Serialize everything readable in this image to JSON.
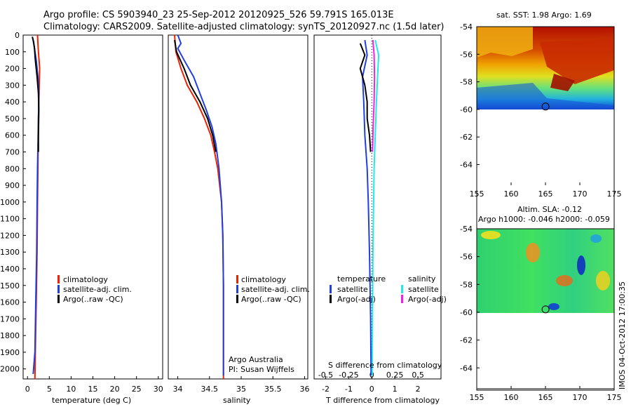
{
  "header": {
    "line1": "Argo profile: CS 5903940_23 25-Sep-2012 20120925_526 59.791S 165.013E",
    "line2": "Climatology: CARS2009. Satellite-adjusted climatology: synTS_20120927.nc (1.5d later)"
  },
  "colors": {
    "climatology": "#ee2200",
    "satellite": "#1f3fe0",
    "argo": "#000000",
    "sal_satellite": "#22e8ee",
    "sal_argo": "#ee22ee"
  },
  "chart_data": [
    {
      "id": "temperature",
      "type": "line",
      "xlabel": "temperature (deg C)",
      "ylabel": "",
      "xlim": [
        -1,
        31
      ],
      "ylim": [
        2060,
        0
      ],
      "y_reversed": true,
      "xticks": [
        "0",
        "5",
        "10",
        "15",
        "20",
        "25",
        "30"
      ],
      "xtick_values": [
        0,
        5,
        10,
        15,
        20,
        25,
        30
      ],
      "yticks": [
        "0",
        "100",
        "200",
        "300",
        "400",
        "500",
        "600",
        "700",
        "800",
        "900",
        "1000",
        "1100",
        "1200",
        "1300",
        "1400",
        "1500",
        "1600",
        "1700",
        "1800",
        "1900",
        "2000"
      ],
      "ytick_values": [
        0,
        100,
        200,
        300,
        400,
        500,
        600,
        700,
        800,
        900,
        1000,
        1100,
        1200,
        1300,
        1400,
        1500,
        1600,
        1700,
        1800,
        1900,
        2000
      ],
      "legend": [
        "climatology",
        "satellite-adj. clim.",
        "Argo(..raw -QC)"
      ],
      "series": [
        {
          "name": "climatology",
          "color_key": "climatology",
          "points": [
            [
              2.3,
              0
            ],
            [
              2.4,
              50
            ],
            [
              2.5,
              100
            ],
            [
              2.8,
              200
            ],
            [
              2.7,
              300
            ],
            [
              2.5,
              500
            ],
            [
              2.4,
              800
            ],
            [
              2.3,
              1000
            ],
            [
              2.2,
              1300
            ],
            [
              2.0,
              1600
            ],
            [
              1.8,
              1900
            ],
            [
              1.7,
              2060
            ]
          ]
        },
        {
          "name": "satellite-adj. clim.",
          "color_key": "satellite",
          "points": [
            [
              1.2,
              20
            ],
            [
              1.5,
              60
            ],
            [
              2.0,
              150
            ],
            [
              2.4,
              250
            ],
            [
              2.6,
              350
            ],
            [
              2.5,
              500
            ],
            [
              2.3,
              800
            ],
            [
              2.2,
              1000
            ],
            [
              2.1,
              1300
            ],
            [
              1.9,
              1600
            ],
            [
              1.7,
              1900
            ],
            [
              1.3,
              2030
            ]
          ]
        },
        {
          "name": "Argo(..raw -QC)",
          "color_key": "argo",
          "points": [
            [
              1.1,
              10
            ],
            [
              1.4,
              40
            ],
            [
              1.6,
              80
            ],
            [
              1.8,
              150
            ],
            [
              2.2,
              250
            ],
            [
              2.5,
              350
            ],
            [
              2.6,
              450
            ],
            [
              2.5,
              600
            ],
            [
              2.5,
              700
            ]
          ]
        }
      ]
    },
    {
      "id": "salinity",
      "type": "line",
      "xlabel": "salinity",
      "ylabel": "",
      "xlim": [
        33.85,
        36.05
      ],
      "ylim": [
        2060,
        0
      ],
      "y_reversed": true,
      "xticks": [
        "34",
        "34.5",
        "35",
        "35.5",
        "36"
      ],
      "xtick_values": [
        34,
        34.5,
        35,
        35.5,
        36
      ],
      "legend": [
        "climatology",
        "satellite-adj. clim.",
        "Argo(..raw -QC)"
      ],
      "annotation_lines": [
        "Argo Australia",
        "PI: Susan Wijffels"
      ],
      "series": [
        {
          "name": "climatology",
          "color_key": "climatology",
          "points": [
            [
              33.95,
              0
            ],
            [
              33.97,
              100
            ],
            [
              34.05,
              200
            ],
            [
              34.15,
              300
            ],
            [
              34.3,
              400
            ],
            [
              34.42,
              500
            ],
            [
              34.52,
              600
            ],
            [
              34.58,
              700
            ],
            [
              34.63,
              800
            ],
            [
              34.66,
              900
            ],
            [
              34.69,
              1000
            ],
            [
              34.71,
              1200
            ],
            [
              34.72,
              1500
            ],
            [
              34.72,
              2060
            ]
          ]
        },
        {
          "name": "satellite-adj. clim.",
          "color_key": "satellite",
          "points": [
            [
              34.0,
              0
            ],
            [
              34.05,
              50
            ],
            [
              34.0,
              80
            ],
            [
              34.1,
              150
            ],
            [
              34.25,
              250
            ],
            [
              34.35,
              350
            ],
            [
              34.45,
              450
            ],
            [
              34.54,
              550
            ],
            [
              34.6,
              650
            ],
            [
              34.65,
              800
            ],
            [
              34.69,
              1000
            ],
            [
              34.71,
              1200
            ],
            [
              34.72,
              1500
            ],
            [
              34.72,
              2040
            ]
          ]
        },
        {
          "name": "Argo(..raw -QC)",
          "color_key": "argo",
          "points": [
            [
              33.95,
              30
            ],
            [
              33.98,
              100
            ],
            [
              34.1,
              200
            ],
            [
              34.2,
              300
            ],
            [
              34.35,
              400
            ],
            [
              34.47,
              500
            ],
            [
              34.55,
              600
            ],
            [
              34.6,
              700
            ]
          ]
        }
      ]
    },
    {
      "id": "differences",
      "type": "line",
      "xlabel": "T difference from climatology",
      "xlabel2": "S difference from climatology",
      "ylabel": "",
      "xlim": [
        -2.5,
        3.0
      ],
      "ylim": [
        2060,
        0
      ],
      "y_reversed": true,
      "xticks": [
        "-2",
        "-1",
        "0",
        "1",
        "2"
      ],
      "xtick_values": [
        -2,
        -1,
        0,
        1,
        2
      ],
      "xticks2": [
        "-0.5",
        "-0.25",
        "0",
        "0.25",
        "0.5"
      ],
      "xtick2_values": [
        -0.5,
        -0.25,
        0,
        0.25,
        0.5
      ],
      "legend_left_title": "temperature",
      "legend_right_title": "salinity",
      "legend_left": [
        "satellite",
        "Argo(-adj)"
      ],
      "legend_right": [
        "satellite",
        "Argo(-adj)"
      ],
      "series": [
        {
          "name": "satellite",
          "color_key": "satellite",
          "points": [
            [
              -0.3,
              30
            ],
            [
              -0.2,
              120
            ],
            [
              -0.4,
              250
            ],
            [
              -0.35,
              400
            ],
            [
              -0.3,
              600
            ],
            [
              -0.2,
              800
            ],
            [
              -0.15,
              1000
            ],
            [
              -0.1,
              1300
            ],
            [
              -0.05,
              1700
            ],
            [
              -0.03,
              2040
            ]
          ]
        },
        {
          "name": "Argo(-adj)",
          "color_key": "argo",
          "points": [
            [
              -0.5,
              50
            ],
            [
              -0.3,
              120
            ],
            [
              -0.5,
              200
            ],
            [
              -0.3,
              300
            ],
            [
              -0.2,
              400
            ],
            [
              -0.2,
              500
            ],
            [
              -0.1,
              600
            ],
            [
              -0.05,
              700
            ]
          ]
        },
        {
          "name": "satellite",
          "color_key": "sal_satellite",
          "points": [
            [
              0.15,
              30
            ],
            [
              0.3,
              120
            ],
            [
              0.25,
              250
            ],
            [
              0.2,
              400
            ],
            [
              0.15,
              600
            ],
            [
              0.1,
              800
            ],
            [
              0.08,
              1000
            ],
            [
              0.05,
              1300
            ],
            [
              0.03,
              1700
            ],
            [
              0.02,
              2040
            ]
          ]
        },
        {
          "name": "Argo(-adj)",
          "color_key": "sal_argo",
          "points": [
            [
              0.05,
              30
            ],
            [
              0.1,
              120
            ],
            [
              0.12,
              250
            ],
            [
              0.1,
              400
            ],
            [
              0.06,
              550
            ],
            [
              0.03,
              700
            ]
          ]
        }
      ]
    },
    {
      "id": "sst_map",
      "type": "heatmap",
      "title": "sat. SST: 1.98 Argo: 1.69",
      "xlim": [
        155,
        175
      ],
      "ylim": [
        -65.5,
        -54
      ],
      "xticks": [
        "155",
        "160",
        "165",
        "170",
        "175"
      ],
      "xtick_values": [
        155,
        160,
        165,
        170,
        175
      ],
      "yticks": [
        "-54",
        "-56",
        "-58",
        "-60",
        "-62",
        "-64"
      ],
      "ytick_values": [
        -54,
        -56,
        -58,
        -60,
        -62,
        -64
      ],
      "float_position": [
        165.013,
        -59.791
      ]
    },
    {
      "id": "sla_map",
      "type": "heatmap",
      "title": "Altim. SLA: -0.12",
      "subtitle": "Argo h1000: -0.046 h2000: -0.059",
      "xlim": [
        155,
        175
      ],
      "ylim": [
        -65.5,
        -54
      ],
      "xticks": [
        "155",
        "160",
        "165",
        "170",
        "175"
      ],
      "xtick_values": [
        155,
        160,
        165,
        170,
        175
      ],
      "yticks": [
        "-54",
        "-56",
        "-58",
        "-60",
        "-62",
        "-64"
      ],
      "ytick_values": [
        -54,
        -56,
        -58,
        -60,
        -62,
        -64
      ],
      "float_position": [
        165.013,
        -59.791
      ]
    }
  ],
  "footer": {
    "stamp": "IMOS 04-Oct-2012 17:00:35"
  }
}
